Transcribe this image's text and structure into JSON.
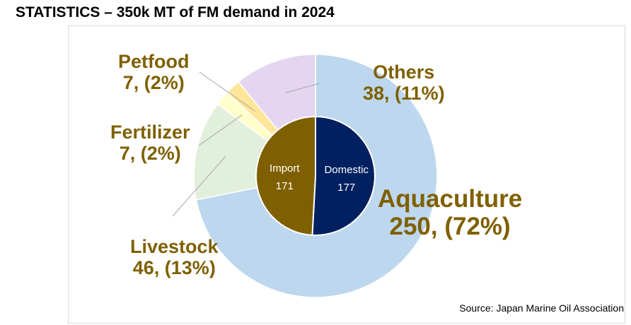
{
  "title": "STATISTICS – 350k MT of FM demand in 2024",
  "source": "Source: Japan Marine Oil Association",
  "colors": {
    "label_text": "#7f6000",
    "leader_line": "#a6a6a6"
  },
  "chart_data": [
    {
      "type": "pie",
      "ring": "outer",
      "total": 348,
      "slices": [
        {
          "name": "Aquaculture",
          "value": 250,
          "percent": "72%",
          "label_line1": "Aquaculture",
          "label_line2": "250, (72%)",
          "color": "#bdd7ee"
        },
        {
          "name": "Livestock",
          "value": 46,
          "percent": "13%",
          "label_line1": "Livestock",
          "label_line2": "46, (13%)",
          "color": "#e2efda"
        },
        {
          "name": "Fertilizer",
          "value": 7,
          "percent": "2%",
          "label_line1": "Fertilizer",
          "label_line2": "7, (2%)",
          "color": "#ffffcc"
        },
        {
          "name": "Petfood",
          "value": 7,
          "percent": "2%",
          "label_line1": "Petfood",
          "label_line2": "7, (2%)",
          "color": "#ffe699"
        },
        {
          "name": "Others",
          "value": 38,
          "percent": "11%",
          "label_line1": "Others",
          "label_line2": "38, (11%)",
          "color": "#e4d5f0"
        }
      ]
    },
    {
      "type": "pie",
      "ring": "inner",
      "total": 348,
      "slices": [
        {
          "name": "Domestic",
          "value": 177,
          "color": "#002060",
          "text_color": "#ffffff"
        },
        {
          "name": "Import",
          "value": 171,
          "color": "#7f6000",
          "text_color": "#ffffff"
        }
      ]
    }
  ]
}
